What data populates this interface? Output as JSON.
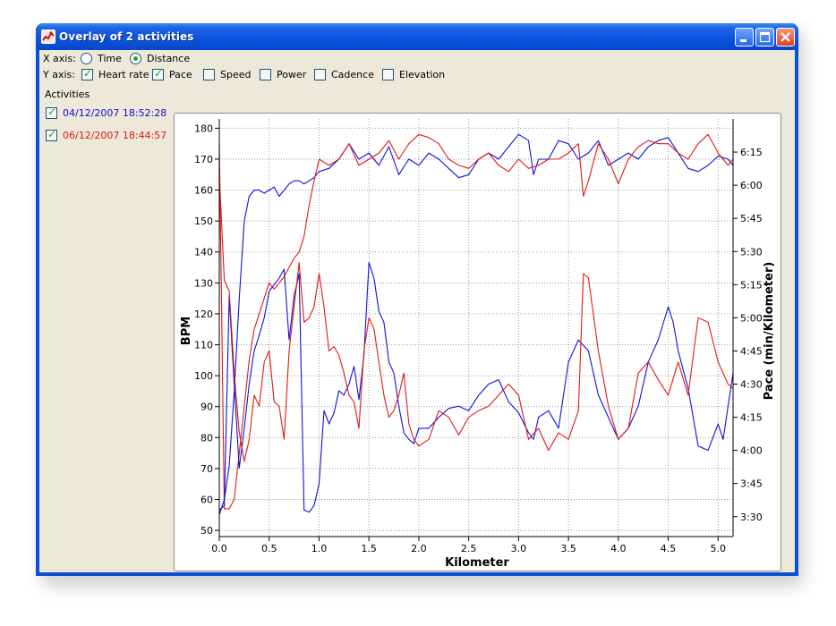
{
  "window": {
    "title": "Overlay of 2 activities"
  },
  "x_axis": {
    "label": "X axis:",
    "options": [
      {
        "label": "Time",
        "selected": false
      },
      {
        "label": "Distance",
        "selected": true
      }
    ]
  },
  "y_axis": {
    "label": "Y axis:",
    "options": [
      {
        "label": "Heart rate",
        "checked": true
      },
      {
        "label": "Pace",
        "checked": true
      },
      {
        "label": "Speed",
        "checked": false
      },
      {
        "label": "Power",
        "checked": false
      },
      {
        "label": "Cadence",
        "checked": false
      },
      {
        "label": "Elevation",
        "checked": false
      }
    ]
  },
  "activities": {
    "heading": "Activities",
    "items": [
      {
        "label": "04/12/2007 18:52:28",
        "color": "#1010d8",
        "checked": true
      },
      {
        "label": "06/12/2007 18:44:57",
        "color": "#e01818",
        "checked": true
      }
    ]
  },
  "chart_data": {
    "type": "line",
    "xlabel": "Kilometer",
    "ylabel": "BPM",
    "y2label": "Pace (min/Kilometer)",
    "xlim": [
      0,
      5.15
    ],
    "ylim": [
      48,
      183
    ],
    "y2lim_seconds": [
      201,
      390
    ],
    "grid": true,
    "x_ticks": [
      "0.0",
      "0.5",
      "1.0",
      "1.5",
      "2.0",
      "2.5",
      "3.0",
      "3.5",
      "4.0",
      "4.5",
      "5.0"
    ],
    "y_ticks": [
      "50",
      "60",
      "70",
      "80",
      "90",
      "100",
      "110",
      "120",
      "130",
      "140",
      "150",
      "160",
      "170",
      "180"
    ],
    "y2_ticks": [
      "3:30",
      "3:45",
      "4:00",
      "4:15",
      "4:30",
      "4:45",
      "5:00",
      "5:15",
      "5:30",
      "5:45",
      "6:00",
      "6:15"
    ],
    "series": [
      {
        "name": "04/12/2007 18:52:28 heart rate",
        "color": "#1010d8",
        "axis": "left",
        "x": [
          0.0,
          0.05,
          0.1,
          0.15,
          0.2,
          0.25,
          0.3,
          0.35,
          0.4,
          0.45,
          0.5,
          0.55,
          0.6,
          0.65,
          0.7,
          0.75,
          0.8,
          0.85,
          0.9,
          0.95,
          1.0,
          1.1,
          1.2,
          1.3,
          1.4,
          1.5,
          1.6,
          1.7,
          1.8,
          1.9,
          2.0,
          2.1,
          2.2,
          2.3,
          2.4,
          2.5,
          2.6,
          2.7,
          2.8,
          2.9,
          3.0,
          3.1,
          3.15,
          3.2,
          3.3,
          3.4,
          3.5,
          3.6,
          3.7,
          3.8,
          3.9,
          4.0,
          4.1,
          4.2,
          4.3,
          4.4,
          4.5,
          4.6,
          4.7,
          4.8,
          4.9,
          5.0,
          5.1,
          5.15
        ],
        "y": [
          55,
          60,
          71,
          95,
          125,
          150,
          158,
          160,
          160,
          159,
          160,
          161,
          158,
          160,
          162,
          163,
          163,
          162,
          163,
          164,
          166,
          167,
          170,
          175,
          170,
          172,
          168,
          174,
          165,
          170,
          168,
          172,
          170,
          167,
          164,
          165,
          170,
          172,
          170,
          174,
          178,
          176,
          165,
          170,
          170,
          176,
          175,
          170,
          172,
          176,
          168,
          170,
          172,
          170,
          174,
          176,
          177,
          172,
          167,
          166,
          168,
          171,
          170,
          168
        ]
      },
      {
        "name": "06/12/2007 18:44:57 heart rate",
        "color": "#e01818",
        "axis": "left",
        "x": [
          0.0,
          0.02,
          0.05,
          0.1,
          0.15,
          0.2,
          0.25,
          0.3,
          0.35,
          0.4,
          0.45,
          0.5,
          0.55,
          0.6,
          0.65,
          0.7,
          0.75,
          0.8,
          0.85,
          0.9,
          0.95,
          1.0,
          1.1,
          1.2,
          1.3,
          1.4,
          1.5,
          1.6,
          1.7,
          1.8,
          1.9,
          2.0,
          2.1,
          2.2,
          2.3,
          2.4,
          2.5,
          2.6,
          2.7,
          2.8,
          2.9,
          3.0,
          3.1,
          3.2,
          3.3,
          3.4,
          3.5,
          3.6,
          3.65,
          3.7,
          3.8,
          3.9,
          4.0,
          4.1,
          4.2,
          4.3,
          4.4,
          4.5,
          4.6,
          4.7,
          4.8,
          4.9,
          5.0,
          5.1,
          5.15
        ],
        "y": [
          175,
          130,
          57,
          57,
          60,
          75,
          90,
          105,
          115,
          120,
          125,
          130,
          128,
          130,
          132,
          135,
          138,
          140,
          145,
          155,
          163,
          170,
          168,
          170,
          175,
          168,
          170,
          172,
          176,
          170,
          175,
          178,
          177,
          175,
          170,
          168,
          167,
          170,
          172,
          168,
          166,
          170,
          167,
          168,
          170,
          170,
          172,
          175,
          158,
          163,
          175,
          170,
          162,
          170,
          174,
          176,
          175,
          175,
          172,
          170,
          175,
          178,
          172,
          168,
          170
        ]
      },
      {
        "name": "04/12/2007 18:52:28 pace",
        "color": "#1010d8",
        "axis": "right",
        "x": [
          0.0,
          0.05,
          0.1,
          0.13,
          0.15,
          0.2,
          0.25,
          0.3,
          0.35,
          0.4,
          0.45,
          0.5,
          0.55,
          0.6,
          0.65,
          0.7,
          0.75,
          0.8,
          0.85,
          0.9,
          0.95,
          1.0,
          1.05,
          1.1,
          1.15,
          1.2,
          1.25,
          1.3,
          1.35,
          1.4,
          1.45,
          1.5,
          1.55,
          1.6,
          1.65,
          1.7,
          1.75,
          1.8,
          1.85,
          1.9,
          1.95,
          2.0,
          2.1,
          2.2,
          2.3,
          2.4,
          2.5,
          2.6,
          2.7,
          2.8,
          2.9,
          3.0,
          3.1,
          3.15,
          3.2,
          3.3,
          3.4,
          3.5,
          3.6,
          3.7,
          3.8,
          3.9,
          4.0,
          4.1,
          4.2,
          4.3,
          4.4,
          4.5,
          4.55,
          4.6,
          4.7,
          4.8,
          4.9,
          5.0,
          5.05,
          5.1,
          5.15
        ],
        "y": [
          213,
          215,
          310,
          285,
          270,
          232,
          250,
          270,
          285,
          292,
          300,
          312,
          315,
          318,
          322,
          290,
          310,
          320,
          213,
          212,
          215,
          225,
          258,
          252,
          257,
          267,
          265,
          270,
          278,
          263,
          283,
          325,
          318,
          303,
          298,
          280,
          275,
          260,
          248,
          245,
          243,
          250,
          250,
          255,
          259,
          260,
          258,
          265,
          270,
          272,
          262,
          257,
          248,
          245,
          255,
          258,
          250,
          280,
          290,
          285,
          265,
          255,
          245,
          250,
          260,
          280,
          290,
          305,
          298,
          285,
          268,
          242,
          240,
          252,
          245,
          260,
          275
        ]
      },
      {
        "name": "06/12/2007 18:44:57 pace",
        "color": "#e01818",
        "axis": "right",
        "x": [
          0.0,
          0.05,
          0.1,
          0.15,
          0.2,
          0.25,
          0.3,
          0.35,
          0.4,
          0.45,
          0.5,
          0.55,
          0.6,
          0.65,
          0.7,
          0.75,
          0.8,
          0.85,
          0.9,
          0.95,
          1.0,
          1.05,
          1.1,
          1.15,
          1.2,
          1.25,
          1.3,
          1.35,
          1.4,
          1.45,
          1.5,
          1.55,
          1.6,
          1.65,
          1.7,
          1.75,
          1.8,
          1.85,
          1.9,
          1.95,
          2.0,
          2.1,
          2.2,
          2.3,
          2.4,
          2.5,
          2.6,
          2.7,
          2.8,
          2.9,
          3.0,
          3.1,
          3.2,
          3.3,
          3.4,
          3.5,
          3.6,
          3.65,
          3.7,
          3.8,
          3.9,
          4.0,
          4.1,
          4.2,
          4.3,
          4.4,
          4.5,
          4.6,
          4.7,
          4.8,
          4.9,
          5.0,
          5.1,
          5.15
        ],
        "y": [
          365,
          317,
          312,
          275,
          248,
          235,
          245,
          265,
          260,
          280,
          285,
          262,
          260,
          245,
          285,
          305,
          325,
          298,
          300,
          305,
          320,
          305,
          285,
          287,
          283,
          275,
          265,
          262,
          250,
          285,
          300,
          295,
          280,
          265,
          255,
          258,
          265,
          275,
          252,
          245,
          242,
          245,
          258,
          255,
          247,
          255,
          258,
          260,
          265,
          270,
          265,
          245,
          250,
          240,
          248,
          245,
          258,
          320,
          318,
          285,
          260,
          245,
          250,
          275,
          280,
          272,
          265,
          280,
          265,
          300,
          298,
          280,
          270,
          268
        ]
      }
    ]
  }
}
